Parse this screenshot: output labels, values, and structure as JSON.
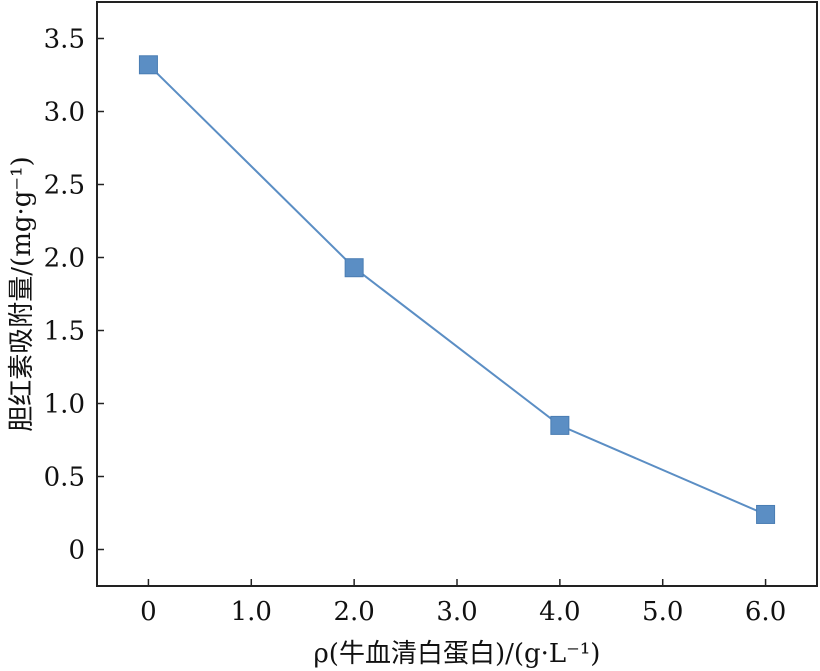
{
  "chart_data": {
    "type": "line",
    "x": [
      0,
      2.0,
      4.0,
      6.0
    ],
    "series": [
      {
        "values": [
          3.32,
          1.93,
          0.85,
          0.24
        ],
        "color": "#5b8ec4",
        "marker": "square"
      }
    ],
    "xlabel": "ρ(牛血清白蛋白)/(g·L⁻¹)",
    "ylabel": "胆红素吸附量/(mg·g⁻¹)",
    "xlim": [
      -0.5,
      6.5
    ],
    "ylim": [
      -0.25,
      3.75
    ],
    "xticks": [
      0,
      1.0,
      2.0,
      3.0,
      4.0,
      5.0,
      6.0
    ],
    "xtick_labels": [
      "0",
      "1.0",
      "2.0",
      "3.0",
      "4.0",
      "5.0",
      "6.0"
    ],
    "yticks": [
      0,
      0.5,
      1.0,
      1.5,
      2.0,
      2.5,
      3.0,
      3.5
    ],
    "ytick_labels": [
      "0",
      "0.5",
      "1.0",
      "1.5",
      "2.0",
      "2.5",
      "3.0",
      "3.5"
    ],
    "grid": false,
    "legend": "none"
  }
}
